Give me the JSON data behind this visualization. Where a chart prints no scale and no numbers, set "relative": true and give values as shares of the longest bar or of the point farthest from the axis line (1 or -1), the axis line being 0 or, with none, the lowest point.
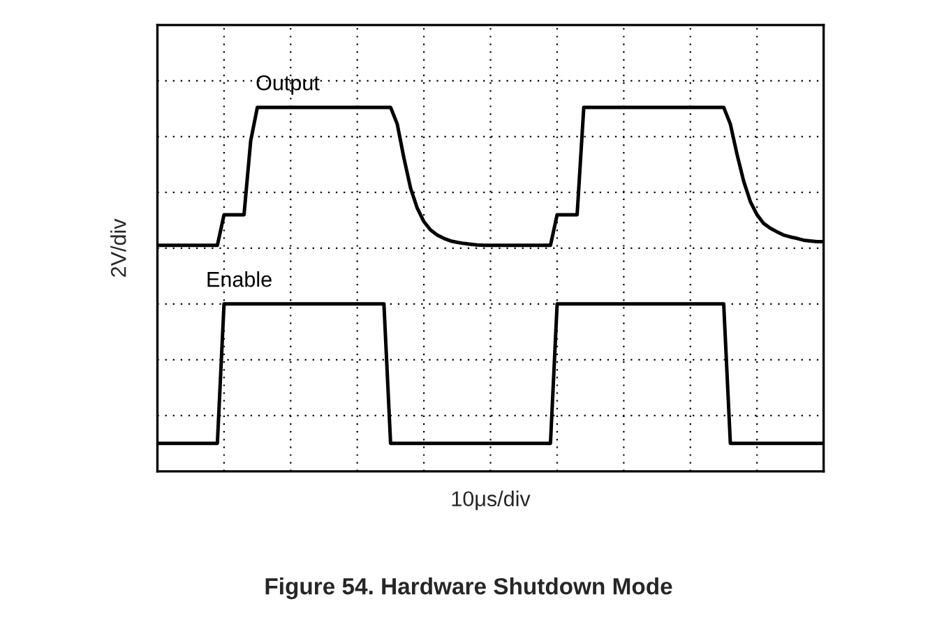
{
  "chart_data": {
    "type": "line",
    "title": "Figure 54. Hardware Shutdown Mode",
    "xlabel": "10μs/div",
    "ylabel": "2V/div",
    "relative": true,
    "grid": true,
    "legend": false,
    "tick_labels": false,
    "marker": "none",
    "line_style": "solid",
    "categories": [
      null,
      null,
      null,
      null,
      null,
      null,
      null,
      null,
      null,
      null,
      null,
      null,
      null,
      null,
      null,
      null,
      null,
      null,
      null,
      null,
      null,
      null,
      null,
      null,
      null,
      null,
      null,
      null,
      null,
      null,
      null,
      null,
      null,
      null,
      null,
      null,
      null,
      null,
      null,
      null,
      null,
      null,
      null,
      null,
      null,
      null,
      null,
      null,
      null,
      null,
      null,
      null,
      null,
      null,
      null,
      null,
      null,
      null,
      null,
      null,
      null,
      null,
      null,
      null,
      null,
      null,
      null,
      null,
      null,
      null,
      null,
      null,
      null,
      null,
      null,
      null,
      null,
      null,
      null,
      null,
      null,
      null,
      null,
      null,
      null,
      null,
      null,
      null,
      null,
      null,
      null,
      null,
      null,
      null,
      null,
      null,
      null,
      null,
      null,
      null,
      null
    ],
    "series": [
      {
        "name": "Output",
        "color": "#000000",
        "values": [
          0.621,
          0.621,
          0.621,
          0.621,
          0.621,
          0.621,
          0.621,
          0.621,
          0.621,
          0.621,
          0.705,
          0.705,
          0.705,
          0.705,
          0.908,
          1,
          1,
          1,
          1,
          1,
          1,
          1,
          1,
          1,
          1,
          1,
          1,
          1,
          1,
          1,
          1,
          1,
          1,
          1,
          1,
          1,
          0.954,
          0.861,
          0.778,
          0.723,
          0.686,
          0.663,
          0.649,
          0.64,
          0.633,
          0.629,
          0.626,
          0.624,
          0.622,
          0.621,
          0.621,
          0.621,
          0.621,
          0.621,
          0.621,
          0.621,
          0.621,
          0.621,
          0.621,
          0.621,
          0.705,
          0.705,
          0.705,
          0.705,
          1,
          1,
          1,
          1,
          1,
          1,
          1,
          1,
          1,
          1,
          1,
          1,
          1,
          1,
          1,
          1,
          1,
          1,
          1,
          1,
          1,
          1,
          0.954,
          0.871,
          0.797,
          0.741,
          0.705,
          0.681,
          0.668,
          0.658,
          0.649,
          0.644,
          0.64,
          0.635,
          0.633,
          0.631,
          0.631
        ]
      },
      {
        "name": "Enable",
        "color": "#000000",
        "values": [
          0.077,
          0.077,
          0.077,
          0.077,
          0.077,
          0.077,
          0.077,
          0.077,
          0.077,
          0.077,
          0.46,
          0.46,
          0.46,
          0.46,
          0.46,
          0.46,
          0.46,
          0.46,
          0.46,
          0.46,
          0.46,
          0.46,
          0.46,
          0.46,
          0.46,
          0.46,
          0.46,
          0.46,
          0.46,
          0.46,
          0.46,
          0.46,
          0.46,
          0.46,
          0.46,
          0.077,
          0.077,
          0.077,
          0.077,
          0.077,
          0.077,
          0.077,
          0.077,
          0.077,
          0.077,
          0.077,
          0.077,
          0.077,
          0.077,
          0.077,
          0.077,
          0.077,
          0.077,
          0.077,
          0.077,
          0.077,
          0.077,
          0.077,
          0.077,
          0.077,
          0.46,
          0.46,
          0.46,
          0.46,
          0.46,
          0.46,
          0.46,
          0.46,
          0.46,
          0.46,
          0.46,
          0.46,
          0.46,
          0.46,
          0.46,
          0.46,
          0.46,
          0.46,
          0.46,
          0.46,
          0.46,
          0.46,
          0.46,
          0.46,
          0.46,
          0.46,
          0.077,
          0.077,
          0.077,
          0.077,
          0.077,
          0.077,
          0.077,
          0.077,
          0.077,
          0.077,
          0.077,
          0.077,
          0.077,
          0.077,
          0.077
        ]
      }
    ]
  }
}
